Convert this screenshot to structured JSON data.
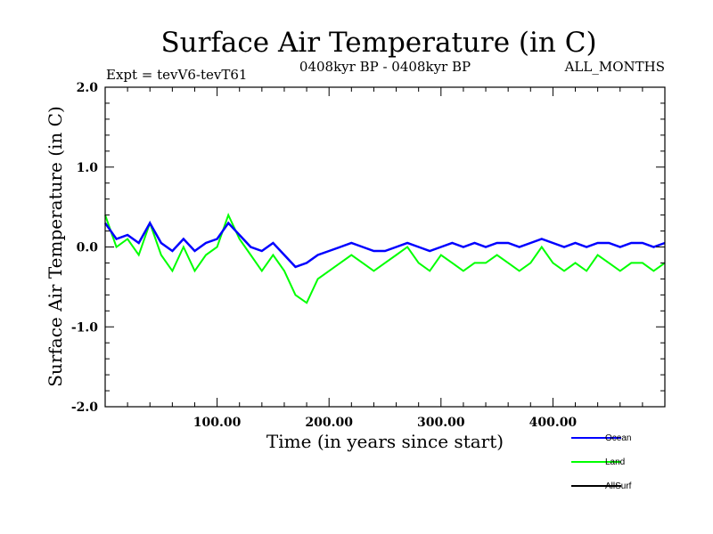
{
  "chart_data": {
    "type": "line",
    "title": "Surface Air Temperature (in C)",
    "subtitle_left": "Expt = tevV6-tevT61",
    "subtitle_center": "0408kyr BP - 0408kyr BP",
    "subtitle_right": "ALL_MONTHS",
    "xlabel": "Time (in years since start)",
    "ylabel": "Surface Air Temperature (in C)",
    "xlim": [
      0,
      500
    ],
    "ylim": [
      -2.0,
      2.0
    ],
    "x_ticks": [
      100,
      200,
      300,
      400
    ],
    "x_tick_labels": [
      "100.00",
      "200.00",
      "300.00",
      "400.00"
    ],
    "y_ticks": [
      -2.0,
      -1.0,
      0.0,
      1.0,
      2.0
    ],
    "y_tick_labels": [
      "-2.0",
      "-1.0",
      "0.0",
      "1.0",
      "2.0"
    ],
    "grid": false,
    "legend_position": "bottom-right, outside plot",
    "series": [
      {
        "name": "Ocean",
        "color": "#0000ff",
        "x": [
          0,
          10,
          20,
          30,
          40,
          50,
          60,
          70,
          80,
          90,
          100,
          110,
          120,
          130,
          140,
          150,
          160,
          170,
          180,
          190,
          200,
          210,
          220,
          230,
          240,
          250,
          260,
          270,
          280,
          290,
          300,
          310,
          320,
          330,
          340,
          350,
          360,
          370,
          380,
          390,
          400,
          410,
          420,
          430,
          440,
          450,
          460,
          470,
          480,
          490,
          500
        ],
        "y": [
          0.3,
          0.1,
          0.15,
          0.05,
          0.3,
          0.05,
          -0.05,
          0.1,
          -0.05,
          0.05,
          0.1,
          0.3,
          0.15,
          0.0,
          -0.05,
          0.05,
          -0.1,
          -0.25,
          -0.2,
          -0.1,
          -0.05,
          0.0,
          0.05,
          0.0,
          -0.05,
          -0.05,
          0.0,
          0.05,
          0.0,
          -0.05,
          0.0,
          0.05,
          0.0,
          0.05,
          0.0,
          0.05,
          0.05,
          0.0,
          0.05,
          0.1,
          0.05,
          0.0,
          0.05,
          0.0,
          0.05,
          0.05,
          0.0,
          0.05,
          0.05,
          0.0,
          0.05
        ]
      },
      {
        "name": "Land",
        "color": "#00ff00",
        "x": [
          0,
          10,
          20,
          30,
          40,
          50,
          60,
          70,
          80,
          90,
          100,
          110,
          120,
          130,
          140,
          150,
          160,
          170,
          180,
          190,
          200,
          210,
          220,
          230,
          240,
          250,
          260,
          270,
          280,
          290,
          300,
          310,
          320,
          330,
          340,
          350,
          360,
          370,
          380,
          390,
          400,
          410,
          420,
          430,
          440,
          450,
          460,
          470,
          480,
          490,
          500
        ],
        "y": [
          0.4,
          0.0,
          0.1,
          -0.1,
          0.3,
          -0.1,
          -0.3,
          0.0,
          -0.3,
          -0.1,
          0.0,
          0.4,
          0.1,
          -0.1,
          -0.3,
          -0.1,
          -0.3,
          -0.6,
          -0.7,
          -0.4,
          -0.3,
          -0.2,
          -0.1,
          -0.2,
          -0.3,
          -0.2,
          -0.1,
          0.0,
          -0.2,
          -0.3,
          -0.1,
          -0.2,
          -0.3,
          -0.2,
          -0.2,
          -0.1,
          -0.2,
          -0.3,
          -0.2,
          0.0,
          -0.2,
          -0.3,
          -0.2,
          -0.3,
          -0.1,
          -0.2,
          -0.3,
          -0.2,
          -0.2,
          -0.3,
          -0.2
        ]
      },
      {
        "name": "AllSurf",
        "color": "#000000",
        "x": [],
        "y": []
      }
    ]
  }
}
